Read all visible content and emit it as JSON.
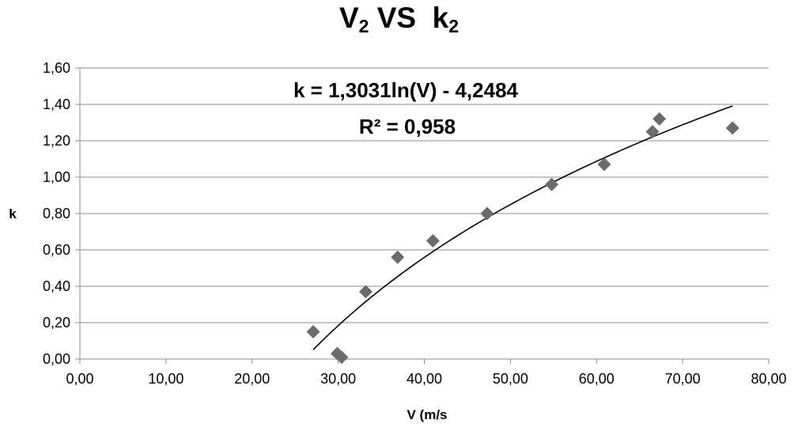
{
  "chart_data": {
    "type": "scatter",
    "title": {
      "main_1": "V",
      "sub_1": "2",
      "main_2": " VS  k",
      "sub_2": "2"
    },
    "xlabel": "V (m/s",
    "ylabel": "k",
    "xlim": [
      0,
      80
    ],
    "ylim": [
      0,
      1.6
    ],
    "x_ticks": [
      "0,00",
      "10,00",
      "20,00",
      "30,00",
      "40,00",
      "50,00",
      "60,00",
      "70,00",
      "80,00"
    ],
    "y_ticks": [
      "0,00",
      "0,20",
      "0,40",
      "0,60",
      "0,80",
      "1,00",
      "1,20",
      "1,40",
      "1,60"
    ],
    "grid": "horizontal",
    "legend": "none",
    "marker": "diamond",
    "marker_color": "#6b6b6b",
    "trendline_color": "#000000",
    "series": [
      {
        "x": [
          27.1,
          29.9,
          30.4,
          33.2,
          36.9,
          41.0,
          47.3,
          54.8,
          60.9,
          66.5,
          67.3,
          75.8
        ],
        "y": [
          0.15,
          0.03,
          0.01,
          0.37,
          0.56,
          0.65,
          0.8,
          0.96,
          1.07,
          1.25,
          1.32,
          1.27
        ]
      }
    ],
    "trendline": {
      "type": "logarithmic",
      "a": 1.3031,
      "b": -4.2484,
      "x_range": [
        27.1,
        75.8
      ],
      "equation": "k = 1,3031ln(V) - 4,2484",
      "r_squared": "R² = 0,958"
    }
  }
}
